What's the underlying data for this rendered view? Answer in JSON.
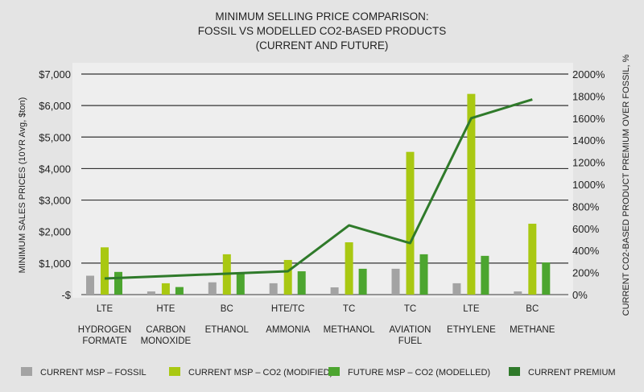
{
  "chart_data": {
    "type": "bar",
    "title_lines": [
      "MINIMUM SELLING PRICE COMPARISON:",
      "FOSSIL VS MODELLED CO2-BASED PRODUCTS",
      "(CURRENT AND FUTURE)"
    ],
    "ylabel": "MINIMUM SALES PRICES (10YR Avg, $ton)",
    "y2label": "CURRENT CO2-BASED PRODUCT PREMIUM OVER FOSSIL, %",
    "ylim": [
      0,
      7000
    ],
    "y2lim": [
      0,
      2000
    ],
    "yticks": [
      "-$",
      "$1,000",
      "$2,000",
      "$3,000",
      "$4,000",
      "$5,000",
      "$6,000",
      "$7,000"
    ],
    "y2ticks": [
      "0%",
      "200%",
      "400%",
      "600%",
      "800%",
      "1000%",
      "1200%",
      "1400%",
      "1600%",
      "1800%",
      "2000%"
    ],
    "gridlines_at": [
      0,
      1000,
      3000,
      4000,
      5000,
      6000,
      7000
    ],
    "categories": [
      {
        "tech": "LTE",
        "name": [
          "HYDROGEN",
          "FORMATE"
        ]
      },
      {
        "tech": "HTE",
        "name": [
          "CARBON",
          "MONOXIDE"
        ]
      },
      {
        "tech": "BC",
        "name": [
          "ETHANOL"
        ]
      },
      {
        "tech": "HTE/TC",
        "name": [
          "AMMONIA"
        ]
      },
      {
        "tech": "TC",
        "name": [
          "METHANOL"
        ]
      },
      {
        "tech": "TC",
        "name": [
          "AVIATION",
          "FUEL"
        ]
      },
      {
        "tech": "LTE",
        "name": [
          "ETHYLENE"
        ]
      },
      {
        "tech": "BC",
        "name": [
          "METHANE"
        ]
      }
    ],
    "series": [
      {
        "name": "CURRENT MSP – FOSSIL",
        "kind": "bar",
        "axis": "left",
        "color": "#a3a3a3",
        "values": [
          600,
          100,
          390,
          360,
          230,
          820,
          360,
          100
        ]
      },
      {
        "name": "CURRENT MSP – CO2 (MODIFIED)",
        "kind": "bar",
        "axis": "left",
        "color": "#a9c812",
        "values": [
          1500,
          360,
          1280,
          1100,
          1660,
          4530,
          6370,
          2250
        ]
      },
      {
        "name": "FUTURE MSP – CO2 (MODELLED)",
        "kind": "bar",
        "axis": "left",
        "color": "#4ca52f",
        "values": [
          720,
          240,
          690,
          740,
          820,
          1280,
          1230,
          1020
        ]
      },
      {
        "name": "CURRENT PREMIUM",
        "kind": "line",
        "axis": "right",
        "color": "#2f7a2a",
        "values": [
          146,
          168,
          190,
          212,
          628,
          467,
          1600,
          1770
        ]
      }
    ],
    "grid": true,
    "legend_placement": "bottom"
  }
}
